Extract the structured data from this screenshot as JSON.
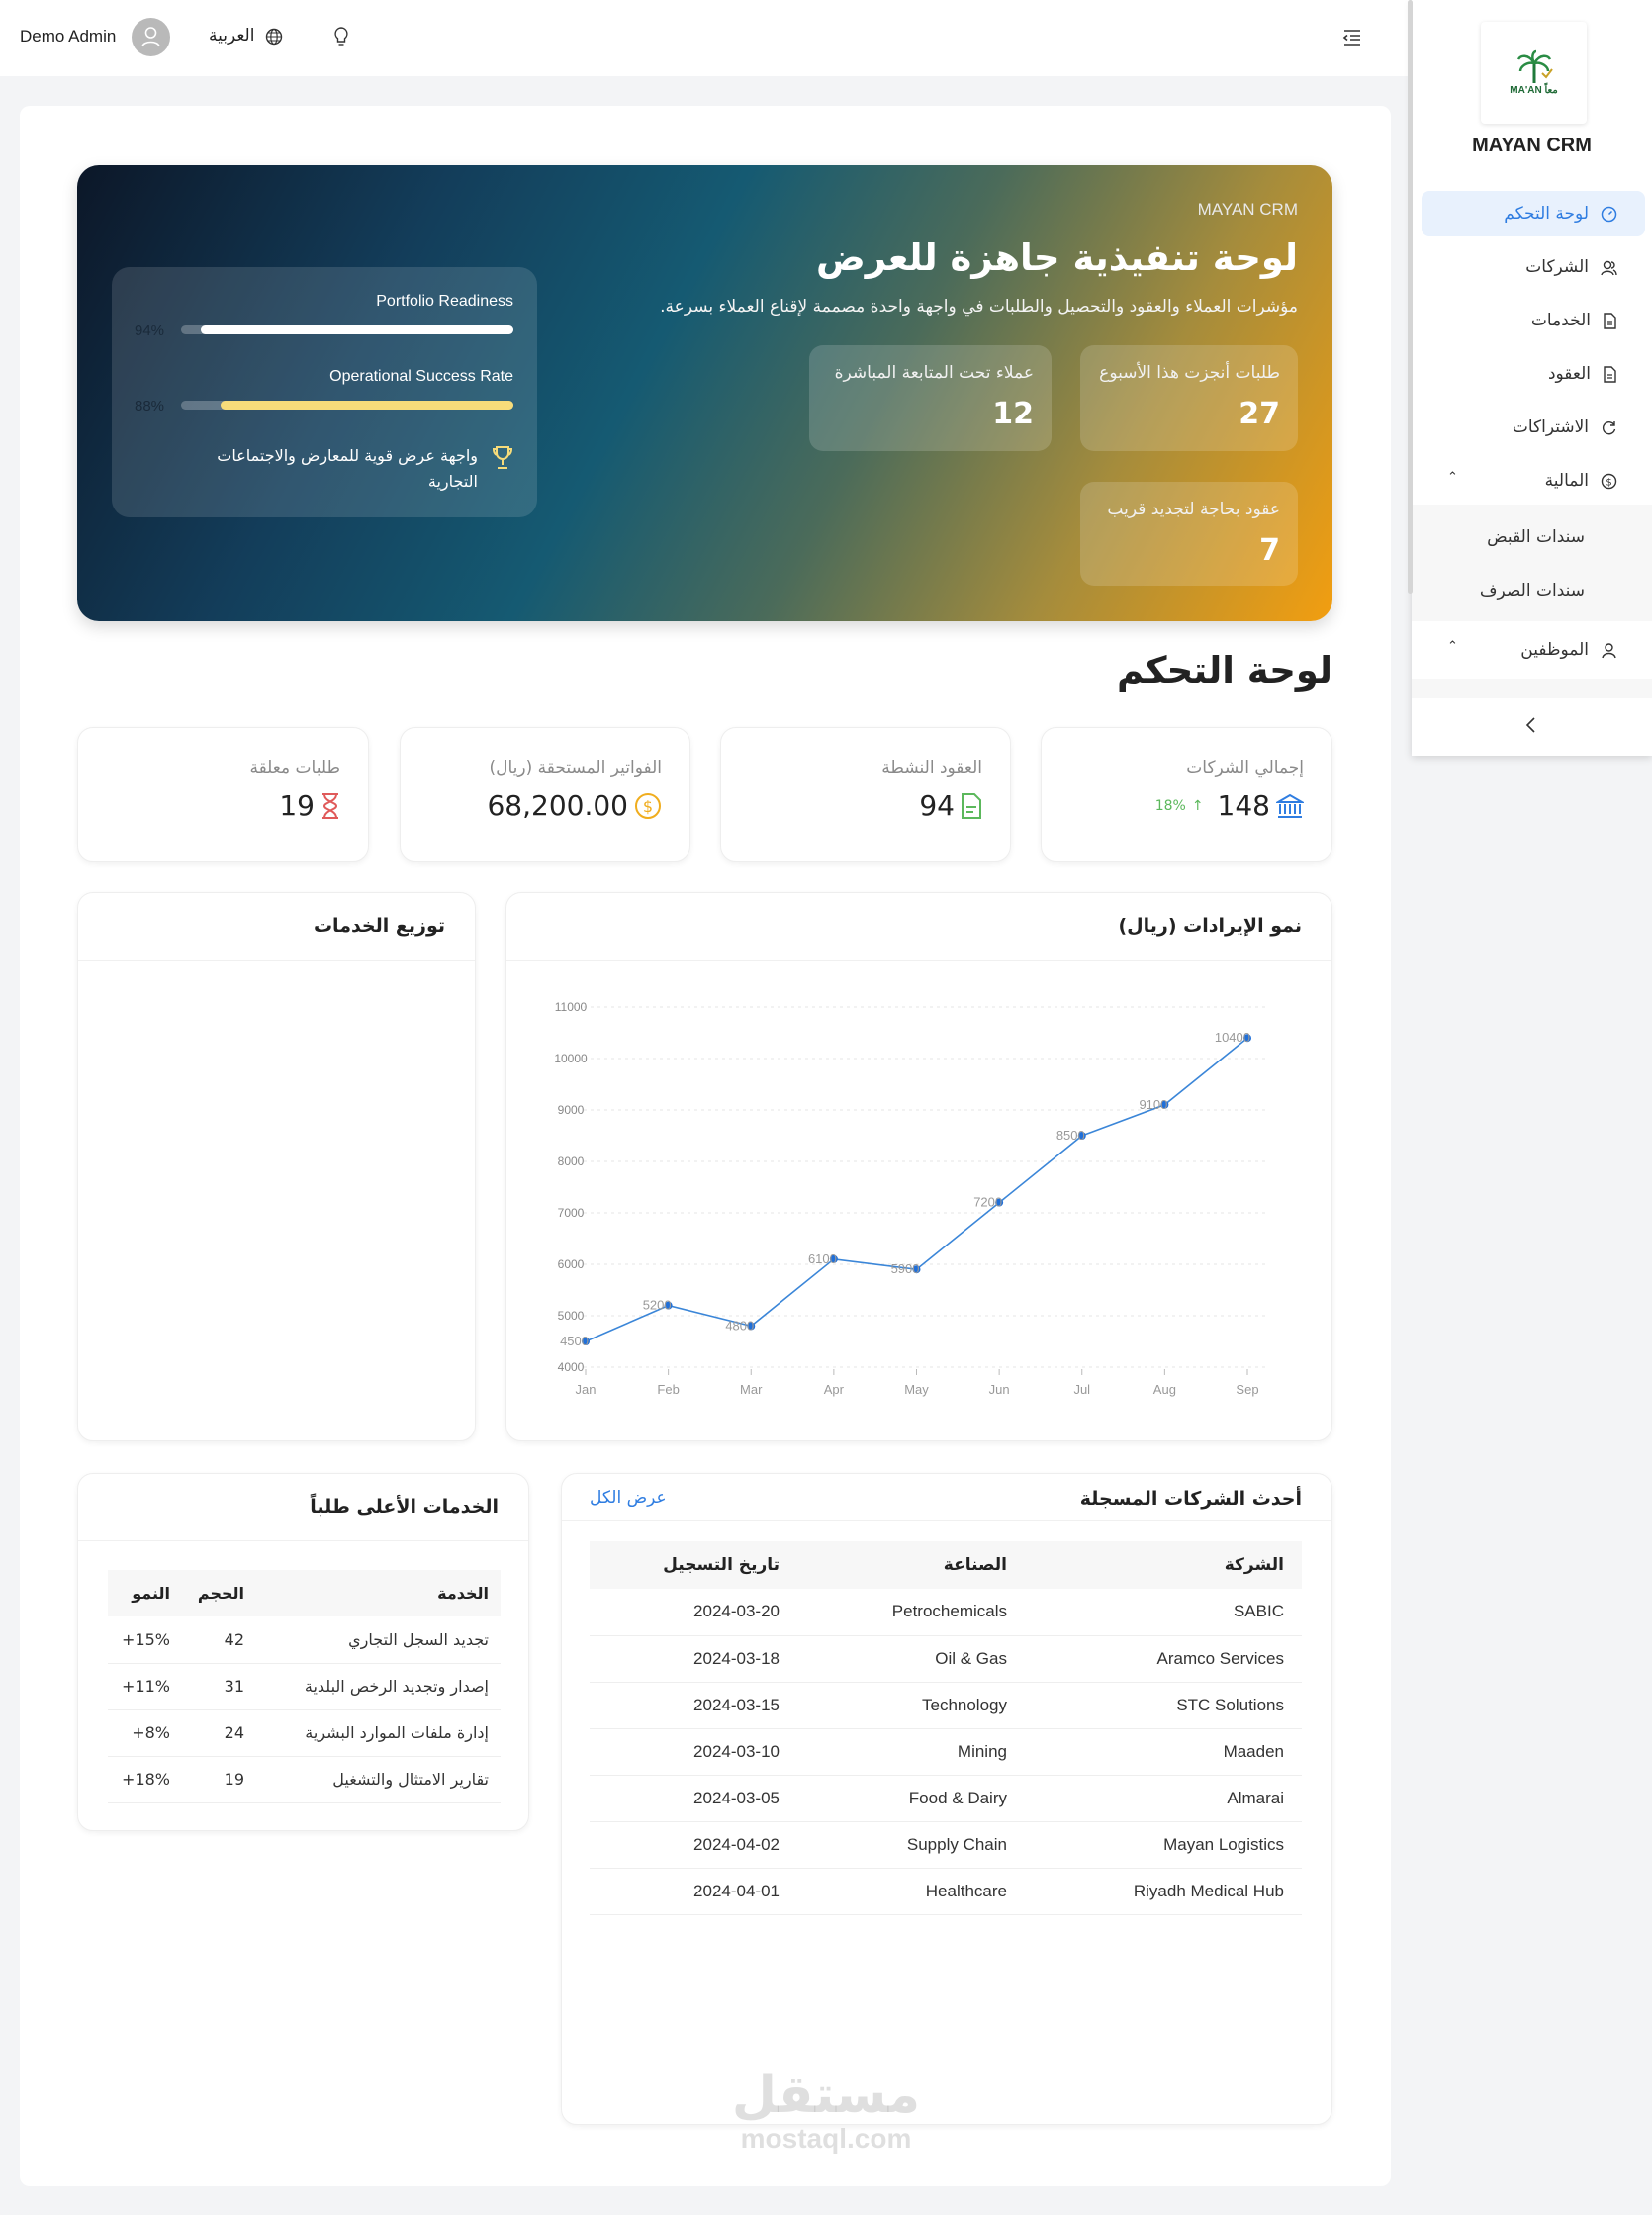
{
  "topbar": {
    "user": "Demo Admin",
    "language": "العربية",
    "icons": [
      "avatar-icon",
      "globe-icon",
      "lightbulb-icon",
      "menu-toggle-icon"
    ]
  },
  "sidebar": {
    "brand": "MAYAN CRM",
    "logo_text": "MA'AN معاً",
    "items": [
      {
        "label": "لوحة التحكم",
        "icon": "dashboard-icon",
        "active": true
      },
      {
        "label": "الشركات",
        "icon": "users-icon"
      },
      {
        "label": "الخدمات",
        "icon": "file-icon"
      },
      {
        "label": "العقود",
        "icon": "file-icon"
      },
      {
        "label": "الاشتراكات",
        "icon": "refresh-icon"
      },
      {
        "label": "المالية",
        "icon": "dollar-icon",
        "expanded": true,
        "children": [
          "سندات القبض",
          "سندات الصرف"
        ]
      },
      {
        "label": "الموظفين",
        "icon": "user-icon",
        "expanded": true
      }
    ],
    "accent": "#2f7de1"
  },
  "hero": {
    "eyebrow": "MAYAN CRM",
    "title": "لوحة تنفيذية جاهزة للعرض",
    "subtitle": "مؤشرات العملاء والعقود والتحصيل والطلبات في واجهة واحدة مصممة لإقناع العملاء بسرعة.",
    "kpis": [
      {
        "label": "طلبات أنجزت هذا الأسبوع",
        "value": "27"
      },
      {
        "label": "عملاء تحت المتابعة المباشرة",
        "value": "12"
      },
      {
        "label": "عقود بحاجة لتجديد قريب",
        "value": "7"
      }
    ],
    "progress": [
      {
        "label": "Portfolio Readiness",
        "value": 94,
        "text": "94%",
        "color": "#ffffff"
      },
      {
        "label": "Operational Success Rate",
        "value": 88,
        "text": "88%",
        "color": "#f7dc7a"
      }
    ],
    "note": "واجهة عرض قوية للمعارض والاجتماعات التجارية"
  },
  "page_title": "لوحة التحكم",
  "stats": [
    {
      "label": "إجمالي الشركات",
      "value": "148",
      "trend": "18%",
      "icon": "bank-icon",
      "color": "#2f7de1"
    },
    {
      "label": "العقود النشطة",
      "value": "94",
      "icon": "document-icon",
      "color": "#5cb85c"
    },
    {
      "label": "الفواتير المستحقة (ريال)",
      "value": "68,200.00",
      "icon": "dollar-coin-icon",
      "color": "#f0ad1e"
    },
    {
      "label": "طلبات معلقة",
      "value": "19",
      "icon": "hourglass-icon",
      "color": "#e05a5a"
    }
  ],
  "services_distribution": {
    "title": "توزيع الخدمات"
  },
  "chart_data": {
    "type": "line",
    "title": "نمو الإيرادات (ريال)",
    "categories": [
      "Jan",
      "Feb",
      "Mar",
      "Apr",
      "May",
      "Jun",
      "Jul",
      "Aug",
      "Sep"
    ],
    "values": [
      4500,
      5200,
      4800,
      6100,
      5900,
      7200,
      8500,
      9100,
      10400
    ],
    "ylim": [
      4000,
      11000
    ],
    "yticks": [
      4000,
      5000,
      6000,
      7000,
      8000,
      9000,
      10000,
      11000
    ],
    "grid": true,
    "data_labels": true,
    "color": "#3b86d8"
  },
  "top_services": {
    "title": "الخدمات الأعلى طلباً",
    "columns": [
      "الخدمة",
      "الحجم",
      "النمو"
    ],
    "rows": [
      [
        "تجديد السجل التجاري",
        "42",
        "15%+"
      ],
      [
        "إصدار وتجديد الرخص البلدية",
        "31",
        "11%+"
      ],
      [
        "إدارة ملفات الموارد البشرية",
        "24",
        "8%+"
      ],
      [
        "تقارير الامتثال والتشغيل",
        "19",
        "18%+"
      ]
    ]
  },
  "companies": {
    "title": "أحدث الشركات المسجلة",
    "view_all": "عرض الكل",
    "columns": [
      "الشركة",
      "الصناعة",
      "تاريخ التسجيل"
    ],
    "rows": [
      [
        "SABIC",
        "Petrochemicals",
        "2024-03-20"
      ],
      [
        "Aramco Services",
        "Oil & Gas",
        "2024-03-18"
      ],
      [
        "STC Solutions",
        "Technology",
        "2024-03-15"
      ],
      [
        "Maaden",
        "Mining",
        "2024-03-10"
      ],
      [
        "Almarai",
        "Food & Dairy",
        "2024-03-05"
      ],
      [
        "Mayan Logistics",
        "Supply Chain",
        "2024-04-02"
      ],
      [
        "Riyadh Medical Hub",
        "Healthcare",
        "2024-04-01"
      ]
    ]
  },
  "watermark": {
    "ar": "مستقل",
    "en": "mostaql.com"
  }
}
